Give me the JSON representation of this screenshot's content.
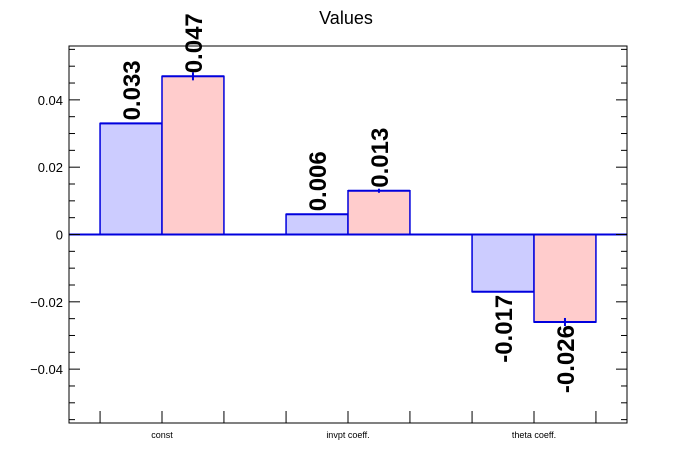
{
  "chart_data": {
    "type": "bar",
    "title": "Values",
    "xlabel": "",
    "ylabel": "",
    "categories": [
      "const",
      "invpt coeff.",
      "theta coeff."
    ],
    "ylim": [
      -0.056,
      0.056
    ],
    "y_ticks": [
      -0.04,
      -0.02,
      0,
      0.02,
      0.04
    ],
    "y_tick_labels": [
      "−0.04",
      "−0.02",
      "0",
      "0.02",
      "0.04"
    ],
    "grid": false,
    "legend": "none",
    "series": [
      {
        "color": "#ccccff",
        "values": [
          0.033,
          0.006,
          -0.017
        ],
        "labels": [
          "0.033",
          "0.006",
          "-0.017"
        ],
        "errors": [
          0.0,
          0.0,
          0.0
        ]
      },
      {
        "color": "#ffcccc",
        "values": [
          0.047,
          0.013,
          -0.026
        ],
        "labels": [
          "0.047",
          "0.013",
          "-0.026"
        ],
        "errors": [
          0.0012,
          0.0006,
          0.0012
        ]
      }
    ],
    "bar_edge_color": "#0000dd",
    "label_color": "#000000"
  }
}
